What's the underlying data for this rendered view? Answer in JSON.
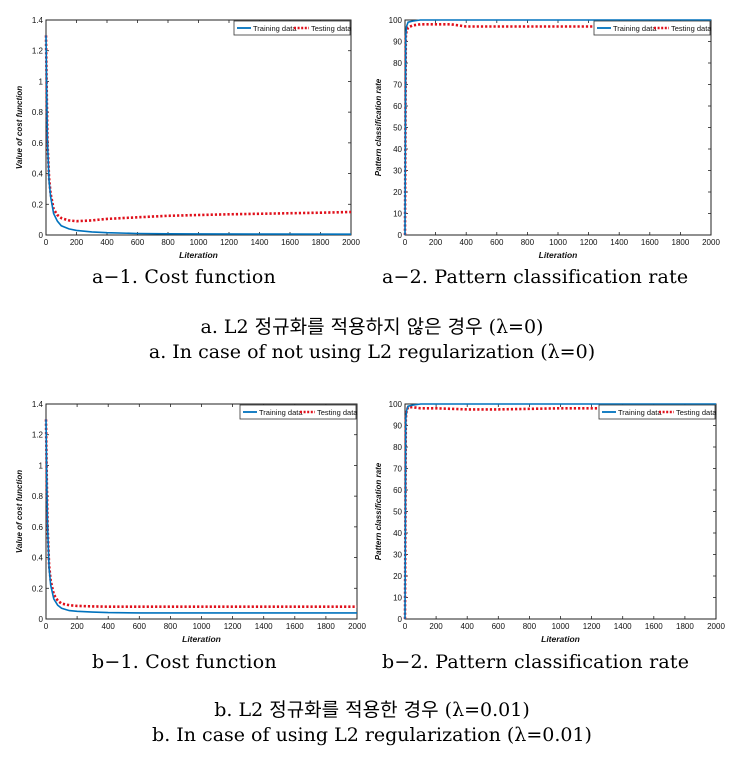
{
  "captions": {
    "a1": "a−1. Cost function",
    "a2": "a−2. Pattern classification rate",
    "a_ko": "a. L2 정규화를 적용하지 않은 경우 (λ=0)",
    "a_en": "a. In case of not using L2 regularization (λ=0)",
    "b1": "b−1. Cost function",
    "b2": "b−2. Pattern classification rate",
    "b_ko": "b. L2 정규화를 적용한 경우 (λ=0.01)",
    "b_en": "b. In case of using L2 regularization (λ=0.01)"
  },
  "colors": {
    "training": "#0072bd",
    "testing": "#e0101b"
  },
  "chart_data": [
    {
      "id": "a1",
      "type": "line",
      "xlabel": "Literation",
      "ylabel": "Value of cost function",
      "xlim": [
        0,
        2000
      ],
      "ylim": [
        0,
        1.4
      ],
      "xticks": [
        0,
        200,
        400,
        600,
        800,
        1000,
        1200,
        1400,
        1600,
        1800,
        2000
      ],
      "yticks": [
        0,
        0.2,
        0.4,
        0.6,
        0.8,
        1,
        1.2,
        1.4
      ],
      "legend": "top-right",
      "series": [
        {
          "name": "Training data",
          "style": "solid",
          "x": [
            0,
            5,
            10,
            20,
            30,
            50,
            75,
            100,
            150,
            200,
            300,
            400,
            600,
            800,
            1000,
            1500,
            2000
          ],
          "y": [
            1.3,
            0.9,
            0.6,
            0.35,
            0.25,
            0.14,
            0.09,
            0.06,
            0.04,
            0.03,
            0.02,
            0.015,
            0.01,
            0.008,
            0.007,
            0.006,
            0.005
          ]
        },
        {
          "name": "Testing data",
          "style": "dotted",
          "x": [
            0,
            5,
            10,
            20,
            30,
            50,
            75,
            100,
            150,
            200,
            300,
            400,
            600,
            800,
            1000,
            1200,
            1500,
            1800,
            2000
          ],
          "y": [
            1.3,
            0.9,
            0.6,
            0.37,
            0.27,
            0.17,
            0.13,
            0.11,
            0.095,
            0.09,
            0.095,
            0.105,
            0.115,
            0.125,
            0.13,
            0.135,
            0.14,
            0.145,
            0.15
          ]
        }
      ]
    },
    {
      "id": "a2",
      "type": "line",
      "xlabel": "Literation",
      "ylabel": "Pattern classification rate",
      "xlim": [
        0,
        2000
      ],
      "ylim": [
        0,
        100
      ],
      "xticks": [
        0,
        200,
        400,
        600,
        800,
        1000,
        1200,
        1400,
        1600,
        1800,
        2000
      ],
      "yticks": [
        0,
        10,
        20,
        30,
        40,
        50,
        60,
        70,
        80,
        90,
        100
      ],
      "legend": "top-right",
      "series": [
        {
          "name": "Training data",
          "style": "solid",
          "x": [
            0,
            5,
            10,
            20,
            50,
            100,
            200,
            500,
            1000,
            2000
          ],
          "y": [
            0,
            93,
            97,
            99,
            99.5,
            100,
            100,
            100,
            100,
            100
          ]
        },
        {
          "name": "Testing data",
          "style": "dotted",
          "x": [
            0,
            5,
            10,
            20,
            50,
            100,
            200,
            300,
            400,
            600,
            800,
            1000,
            1200,
            1500,
            2000
          ],
          "y": [
            0,
            92,
            95,
            96.5,
            97.5,
            98,
            98,
            98,
            97,
            97,
            97,
            97,
            97,
            97,
            97
          ]
        }
      ]
    },
    {
      "id": "b1",
      "type": "line",
      "xlabel": "Literation",
      "ylabel": "Value of cost function",
      "xlim": [
        0,
        2000
      ],
      "ylim": [
        0,
        1.4
      ],
      "xticks": [
        0,
        200,
        400,
        600,
        800,
        1000,
        1200,
        1400,
        1600,
        1800,
        2000
      ],
      "yticks": [
        0,
        0.2,
        0.4,
        0.6,
        0.8,
        1,
        1.2,
        1.4
      ],
      "legend": "top-right",
      "series": [
        {
          "name": "Training data",
          "style": "solid",
          "x": [
            0,
            5,
            10,
            20,
            30,
            50,
            75,
            100,
            150,
            200,
            300,
            400,
            600,
            800,
            1000,
            1500,
            2000
          ],
          "y": [
            1.3,
            0.9,
            0.6,
            0.33,
            0.22,
            0.13,
            0.09,
            0.07,
            0.055,
            0.05,
            0.045,
            0.042,
            0.04,
            0.04,
            0.04,
            0.04,
            0.04
          ]
        },
        {
          "name": "Testing data",
          "style": "dotted",
          "x": [
            0,
            5,
            10,
            20,
            30,
            50,
            75,
            100,
            150,
            200,
            300,
            400,
            600,
            800,
            1000,
            1500,
            2000
          ],
          "y": [
            1.3,
            0.9,
            0.6,
            0.35,
            0.25,
            0.16,
            0.12,
            0.1,
            0.09,
            0.085,
            0.082,
            0.08,
            0.08,
            0.08,
            0.08,
            0.08,
            0.08
          ]
        }
      ]
    },
    {
      "id": "b2",
      "type": "line",
      "xlabel": "Literation",
      "ylabel": "Pattern classification rate",
      "xlim": [
        0,
        2000
      ],
      "ylim": [
        0,
        100
      ],
      "xticks": [
        0,
        200,
        400,
        600,
        800,
        1000,
        1200,
        1400,
        1600,
        1800,
        2000
      ],
      "yticks": [
        0,
        10,
        20,
        30,
        40,
        50,
        60,
        70,
        80,
        90,
        100
      ],
      "legend": "top-right",
      "series": [
        {
          "name": "Training data",
          "style": "solid",
          "x": [
            0,
            5,
            10,
            20,
            50,
            100,
            200,
            500,
            1000,
            2000
          ],
          "y": [
            0,
            93,
            97,
            99,
            99.5,
            100,
            100,
            100,
            100,
            100
          ]
        },
        {
          "name": "Testing data",
          "style": "dotted",
          "x": [
            0,
            5,
            10,
            20,
            50,
            100,
            200,
            400,
            600,
            1000,
            1500,
            2000
          ],
          "y": [
            0,
            93,
            97,
            98.5,
            98.5,
            98,
            98,
            97.5,
            97.5,
            98,
            98,
            98
          ]
        }
      ]
    }
  ]
}
